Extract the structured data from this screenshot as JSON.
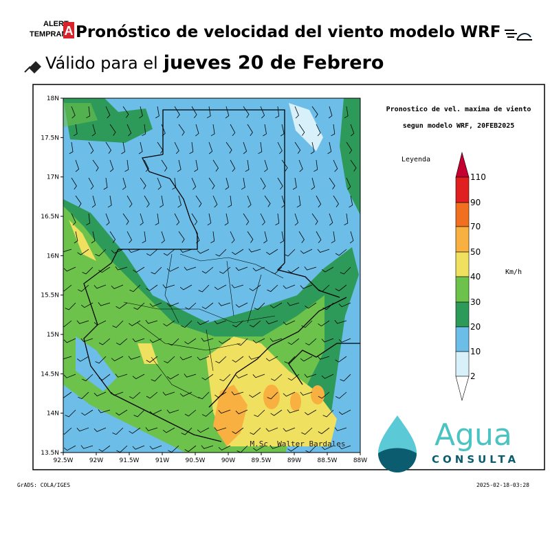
{
  "header": {
    "logo_top": "ALERT",
    "logo_bottom": "TEMPRAN",
    "logo_mark": "A",
    "title": "Pronóstico de velocidad del viento modelo WRF",
    "valid_prefix": "Válido para el",
    "valid_date": "jueves 20 de Febrero"
  },
  "map": {
    "title_line1": "Pronostico de vel. maxima de viento",
    "title_line2": "segun modelo WRF, 20FEB2025",
    "legend_title": "Leyenda",
    "legend_ticks": [
      "110",
      "90",
      "70",
      "50",
      "40",
      "30",
      "20",
      "10",
      "2"
    ],
    "unit": "Km/h",
    "lat_labels": [
      "18N",
      "17.5N",
      "17N",
      "16.5N",
      "16N",
      "15.5N",
      "15N",
      "14.5N",
      "14N",
      "13.5N"
    ],
    "lon_labels": [
      "92.5W",
      "92W",
      "91.5W",
      "91W",
      "90.5W",
      "90W",
      "89.5W",
      "89W",
      "88.5W",
      "88W"
    ],
    "credit": "M.Sc. Walter Bardales"
  },
  "brand": {
    "name": "Agua",
    "sub": "CONSULTA"
  },
  "footer": {
    "left": "GrADS: COLA/IGES",
    "right": "2025-02-18-03:28"
  }
}
